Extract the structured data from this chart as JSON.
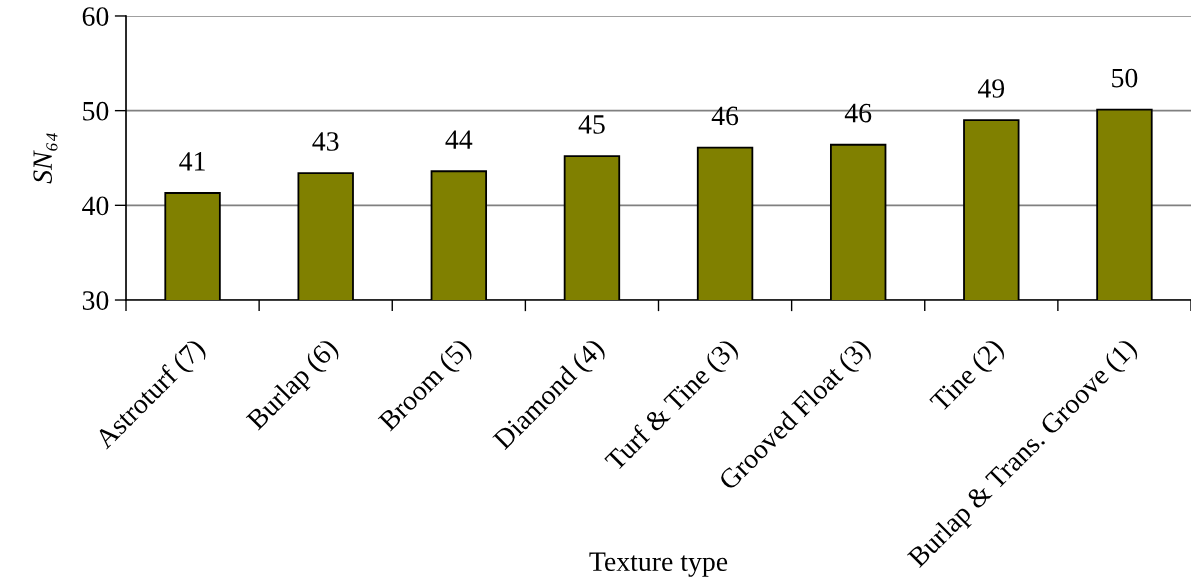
{
  "chart_data": {
    "type": "bar",
    "xlabel": "Texture type",
    "ylabel": "SN₆₄",
    "categories": [
      "Astroturf (7)",
      "Burlap (6)",
      "Broom (5)",
      "Diamond (4)",
      "Turf & Tine (3)",
      "Grooved Float (3)",
      "Tine (2)",
      "Burlap & Trans. Groove (1)"
    ],
    "values": [
      41.3,
      43.4,
      43.6,
      45.2,
      46.1,
      46.4,
      49.0,
      50.1
    ],
    "value_labels": [
      "41",
      "43",
      "44",
      "45",
      "46",
      "46",
      "49",
      "50"
    ],
    "color": "#808000",
    "ylim": [
      30,
      60
    ],
    "yticks": [
      30,
      40,
      50,
      60
    ],
    "grid": "y"
  }
}
